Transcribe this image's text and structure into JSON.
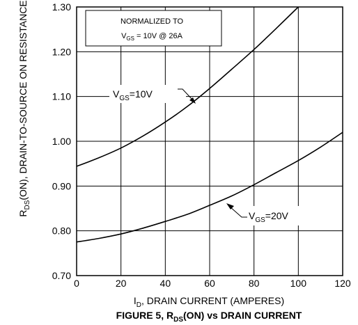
{
  "chart_data": {
    "type": "line",
    "title": {
      "prefix": "FIGURE 5, R",
      "sub": "DS",
      "suffix": "(ON) vs DRAIN CURRENT"
    },
    "xlabel": {
      "prefix": "I",
      "sub": "D",
      "suffix": ", DRAIN CURRENT (AMPERES)"
    },
    "ylabel": {
      "prefix": "R",
      "sub": "DS",
      "suffix": "(ON), DRAIN-TO-SOURCE ON RESISTANCE"
    },
    "xlim": [
      0,
      120
    ],
    "ylim": [
      0.7,
      1.3
    ],
    "xticks": [
      0,
      20,
      40,
      60,
      80,
      100,
      120
    ],
    "xtick_labels": [
      "0",
      "20",
      "40",
      "60",
      "80",
      "100",
      "120"
    ],
    "yticks": [
      0.7,
      0.8,
      0.9,
      1.0,
      1.1,
      1.2,
      1.3
    ],
    "ytick_labels": [
      "0.70",
      "0.80",
      "0.90",
      "1.00",
      "1.10",
      "1.20",
      "1.30"
    ],
    "grid": true,
    "note": {
      "line1": "NORMALIZED  TO",
      "line2_prefix": "V",
      "line2_sub": "GS",
      "line2_suffix": " = 10V  @  26A"
    },
    "series": [
      {
        "label_prefix": "V",
        "label_sub": "GS",
        "label_suffix": "=10V",
        "x": [
          0,
          10,
          20,
          30,
          40,
          50,
          60,
          70,
          80,
          90,
          100
        ],
        "y": [
          0.944,
          0.963,
          0.985,
          1.012,
          1.043,
          1.078,
          1.118,
          1.161,
          1.205,
          1.252,
          1.3
        ]
      },
      {
        "label_prefix": "V",
        "label_sub": "GS",
        "label_suffix": "=20V",
        "x": [
          0,
          10,
          20,
          30,
          40,
          50,
          60,
          70,
          80,
          90,
          100,
          110,
          120
        ],
        "y": [
          0.775,
          0.783,
          0.793,
          0.806,
          0.821,
          0.837,
          0.857,
          0.878,
          0.903,
          0.93,
          0.957,
          0.987,
          1.02
        ]
      }
    ]
  }
}
